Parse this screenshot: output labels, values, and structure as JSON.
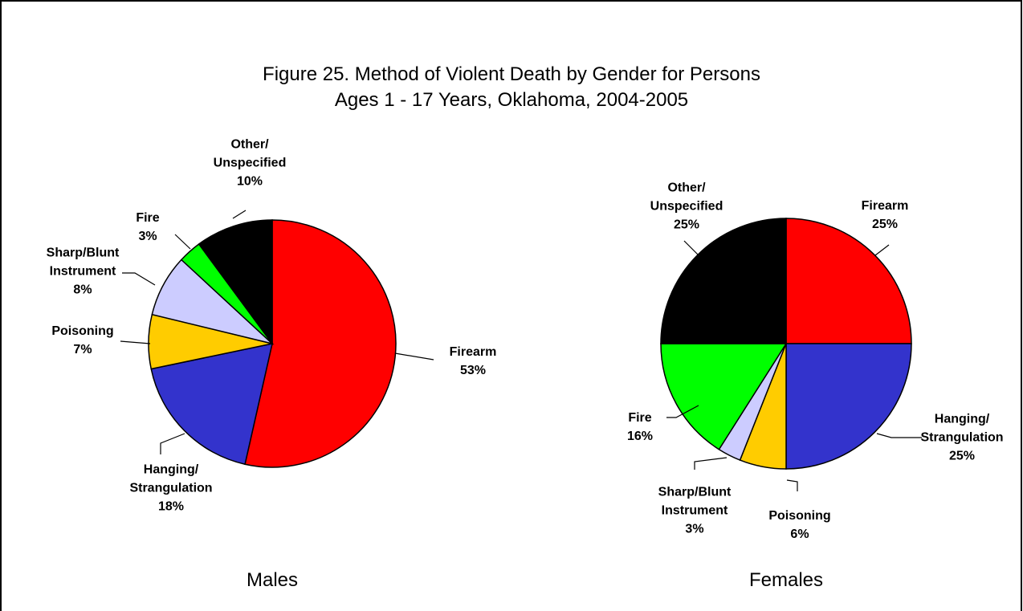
{
  "title": [
    "Figure 25.  Method of Violent Death by Gender for Persons",
    "Ages 1 - 17 Years, Oklahoma, 2004-2005"
  ],
  "chart_data": [
    {
      "type": "pie",
      "title": "Males",
      "categories": [
        "Firearm",
        "Hanging/\nStrangulation",
        "Poisoning",
        "Sharp/Blunt\nInstrument",
        "Fire",
        "Other/\nUnspecified"
      ],
      "values": [
        53,
        18,
        7,
        8,
        3,
        10
      ],
      "value_labels": [
        "53%",
        "18%",
        "7%",
        "8%",
        "3%",
        "10%"
      ],
      "colors": [
        "#ff0000",
        "#3333cc",
        "#ffcc00",
        "#ccccff",
        "#00ff00",
        "#000000"
      ]
    },
    {
      "type": "pie",
      "title": "Females",
      "categories": [
        "Firearm",
        "Hanging/\nStrangulation",
        "Poisoning",
        "Sharp/Blunt\nInstrument",
        "Fire",
        "Other/\nUnspecified"
      ],
      "values": [
        25,
        25,
        6,
        3,
        16,
        25
      ],
      "value_labels": [
        "25%",
        "25%",
        "6%",
        "3%",
        "16%",
        "25%"
      ],
      "colors": [
        "#ff0000",
        "#3333cc",
        "#ffcc00",
        "#ccccff",
        "#00ff00",
        "#000000"
      ]
    }
  ]
}
